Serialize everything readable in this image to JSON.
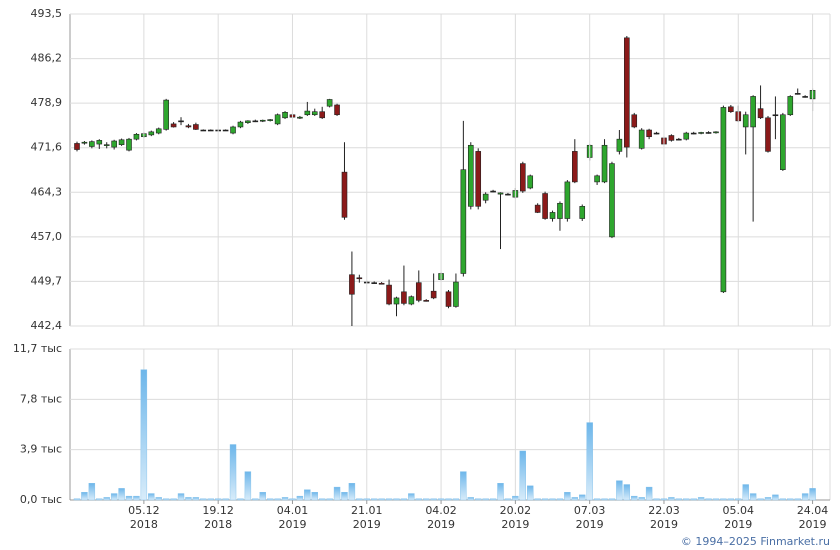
{
  "chart_data": [
    {
      "type": "candlestick",
      "open": [
        472.3,
        472.4,
        471.8,
        472.2,
        472.0,
        471.7,
        472.1,
        471.2,
        473.0,
        473.4,
        473.7,
        474.0,
        474.6,
        475.5,
        476.0,
        475.2,
        475.4,
        474.5,
        474.5,
        474.5,
        474.5,
        474.0,
        475.0,
        475.7,
        476.0,
        476.0,
        476.1,
        475.5,
        476.5,
        477.0,
        476.5,
        477.0,
        477.0,
        477.5,
        478.4,
        478.6,
        467.6,
        450.8,
        450.3,
        449.6,
        449.5,
        449.4,
        449.1,
        446.0,
        448.0,
        446.0,
        449.5,
        446.6,
        448.1,
        450.0,
        448.0,
        445.6,
        451.0,
        462.0,
        471.0,
        463.0,
        464.5,
        464.0,
        464.0,
        463.5,
        469.0,
        465.0,
        462.2,
        464.1,
        460.0,
        460.0,
        460.0,
        471.0,
        460.0,
        470.0,
        466.0,
        466.0,
        457.0,
        471.0,
        489.6,
        477.0,
        471.5,
        474.5,
        474.0,
        473.2,
        473.6,
        473.0,
        473.0,
        474.0,
        474.0,
        474.1,
        474.1,
        448.0,
        478.3,
        477.5,
        475.0,
        475.0,
        478.0,
        476.5,
        477.0,
        468.0,
        477.0,
        480.5,
        480.0,
        479.6
      ],
      "high": [
        472.6,
        472.7,
        472.8,
        473.0,
        472.5,
        472.9,
        473.1,
        473.2,
        474.0,
        474.1,
        474.4,
        474.9,
        479.6,
        475.8,
        476.6,
        475.5,
        475.7,
        474.6,
        474.6,
        474.6,
        474.6,
        475.2,
        476.0,
        476.1,
        476.2,
        476.2,
        476.3,
        477.2,
        477.6,
        477.3,
        476.8,
        479.1,
        478.0,
        478.3,
        479.6,
        478.8,
        472.5,
        454.6,
        450.8,
        449.8,
        449.7,
        449.6,
        450.0,
        447.2,
        452.3,
        447.4,
        451.5,
        446.8,
        451.0,
        451.2,
        448.3,
        451.0,
        476.0,
        472.5,
        471.5,
        464.3,
        464.7,
        464.3,
        464.2,
        465.0,
        469.3,
        467.2,
        462.5,
        464.4,
        461.3,
        462.8,
        466.3,
        473.0,
        462.3,
        472.2,
        467.2,
        473.0,
        469.3,
        474.5,
        489.9,
        477.3,
        474.8,
        474.7,
        474.2,
        473.5,
        473.8,
        473.2,
        474.2,
        474.2,
        474.2,
        474.3,
        474.3,
        478.5,
        478.6,
        478.5,
        477.5,
        480.2,
        481.8,
        476.8,
        480.0,
        477.3,
        480.2,
        481.3,
        480.2,
        481.3
      ],
      "low": [
        471.0,
        472.1,
        471.5,
        471.4,
        471.5,
        471.3,
        471.9,
        471.0,
        472.8,
        473.2,
        473.5,
        473.8,
        474.4,
        474.9,
        475.3,
        474.8,
        474.5,
        474.4,
        474.4,
        474.4,
        474.4,
        473.8,
        474.8,
        475.5,
        475.8,
        475.8,
        475.9,
        475.3,
        476.3,
        476.4,
        476.3,
        476.8,
        476.8,
        476.3,
        478.2,
        476.8,
        459.8,
        442.4,
        449.5,
        449.4,
        449.3,
        449.2,
        445.8,
        444.0,
        445.8,
        445.8,
        446.3,
        446.4,
        446.8,
        449.8,
        445.3,
        445.4,
        450.5,
        461.5,
        461.5,
        462.5,
        464.3,
        455.0,
        463.8,
        463.3,
        464.2,
        464.8,
        460.9,
        459.8,
        459.5,
        458.0,
        459.5,
        465.8,
        459.6,
        469.5,
        465.5,
        465.8,
        456.8,
        470.5,
        470.0,
        474.8,
        471.3,
        473.0,
        473.8,
        472.0,
        472.6,
        472.8,
        472.8,
        473.8,
        473.8,
        473.9,
        473.9,
        447.8,
        477.3,
        475.8,
        470.5,
        459.5,
        476.3,
        470.8,
        473.0,
        467.8,
        476.8,
        480.3,
        479.8,
        477.6
      ],
      "close": [
        471.3,
        472.5,
        472.6,
        472.8,
        472.1,
        472.7,
        472.9,
        473.0,
        473.8,
        473.9,
        474.2,
        474.7,
        479.4,
        475.0,
        476.0,
        475.0,
        474.6,
        474.5,
        474.5,
        474.5,
        474.5,
        475.0,
        475.8,
        476.0,
        476.0,
        476.1,
        476.2,
        477.0,
        477.4,
        476.6,
        476.6,
        477.6,
        477.5,
        476.5,
        479.5,
        477.0,
        460.2,
        447.6,
        450.2,
        449.6,
        449.5,
        449.3,
        446.0,
        447.0,
        446.1,
        447.2,
        446.6,
        446.5,
        447.0,
        451.0,
        445.6,
        449.6,
        468.0,
        472.0,
        462.0,
        464.0,
        464.5,
        464.2,
        464.0,
        464.6,
        464.5,
        467.0,
        461.0,
        460.0,
        461.0,
        462.5,
        466.0,
        466.0,
        462.0,
        472.0,
        467.0,
        472.0,
        469.0,
        473.0,
        471.7,
        475.0,
        474.5,
        473.4,
        474.0,
        472.2,
        472.8,
        473.0,
        474.0,
        474.0,
        474.1,
        474.1,
        474.2,
        478.2,
        477.5,
        476.0,
        477.0,
        480.0,
        476.5,
        471.0,
        477.0,
        477.0,
        480.0,
        480.5,
        480.0,
        481.0
      ],
      "up_color": "#2ea62e",
      "down_color": "#8b1a1a",
      "ylim": [
        442.4,
        493.5
      ],
      "yticks": [
        {
          "value": 442.4,
          "label": "442,4"
        },
        {
          "value": 449.7,
          "label": "449,7"
        },
        {
          "value": 457.0,
          "label": "457,0"
        },
        {
          "value": 464.3,
          "label": "464,3"
        },
        {
          "value": 471.6,
          "label": "471,6"
        },
        {
          "value": 478.9,
          "label": "478,9"
        },
        {
          "value": 486.2,
          "label": "486,2"
        },
        {
          "value": 493.5,
          "label": "493,5"
        }
      ],
      "grid": true
    },
    {
      "type": "bar",
      "categories": [
        null,
        null,
        null,
        null,
        null,
        null,
        null,
        null,
        null,
        "05.12 2018",
        null,
        null,
        null,
        null,
        null,
        null,
        null,
        null,
        null,
        "19.12 2018",
        null,
        null,
        null,
        null,
        null,
        null,
        null,
        null,
        null,
        "04.01 2019",
        null,
        null,
        null,
        null,
        null,
        null,
        null,
        null,
        null,
        "21.01 2019",
        null,
        null,
        null,
        null,
        null,
        null,
        null,
        null,
        null,
        "04.02 2019",
        null,
        null,
        null,
        null,
        null,
        null,
        null,
        null,
        null,
        "20.02 2019",
        null,
        null,
        null,
        null,
        null,
        null,
        null,
        null,
        null,
        "07.03 2019",
        null,
        null,
        null,
        null,
        null,
        null,
        null,
        null,
        null,
        "22.03 2019",
        null,
        null,
        null,
        null,
        null,
        null,
        null,
        null,
        null,
        "05.04 2019",
        null,
        null,
        null,
        null,
        null,
        null,
        null,
        null,
        null,
        "24.04 2019"
      ],
      "values": [
        0.1,
        0.6,
        1.3,
        0.1,
        0.2,
        0.5,
        0.9,
        0.3,
        0.3,
        10.1,
        0.5,
        0.2,
        0.1,
        0.1,
        0.5,
        0.2,
        0.2,
        0.1,
        0.1,
        0.1,
        0.1,
        4.3,
        0.1,
        2.2,
        0.1,
        0.6,
        0.1,
        0.1,
        0.2,
        0.1,
        0.3,
        0.8,
        0.6,
        0.1,
        0.1,
        1.0,
        0.6,
        1.3,
        0.1,
        0.1,
        0.1,
        0.1,
        0.1,
        0.1,
        0.1,
        0.5,
        0.1,
        0.1,
        0.1,
        0.1,
        0.1,
        0.1,
        2.2,
        0.2,
        0.1,
        0.1,
        0.1,
        1.3,
        0.1,
        0.3,
        3.8,
        1.1,
        0.1,
        0.1,
        0.1,
        0.1,
        0.6,
        0.2,
        0.4,
        6.0,
        0.1,
        0.1,
        0.1,
        1.5,
        1.2,
        0.3,
        0.2,
        1.0,
        0.1,
        0.1,
        0.2,
        0.1,
        0.1,
        0.1,
        0.2,
        0.1,
        0.1,
        0.1,
        0.1,
        0.1,
        1.2,
        0.5,
        0.1,
        0.2,
        0.4,
        0.1,
        0.1,
        0.1,
        0.5,
        0.9
      ],
      "color": "#7fbfea",
      "ylim": [
        0,
        11.7
      ],
      "yticks": [
        {
          "value": 0,
          "label": "0,0 тыс"
        },
        {
          "value": 3.9,
          "label": "3,9 тыс"
        },
        {
          "value": 7.8,
          "label": "7,8 тыс"
        },
        {
          "value": 11.7,
          "label": "11,7 тыс"
        }
      ],
      "grid": true
    }
  ],
  "footer": "© 1994–2025 Finmarket.ru"
}
